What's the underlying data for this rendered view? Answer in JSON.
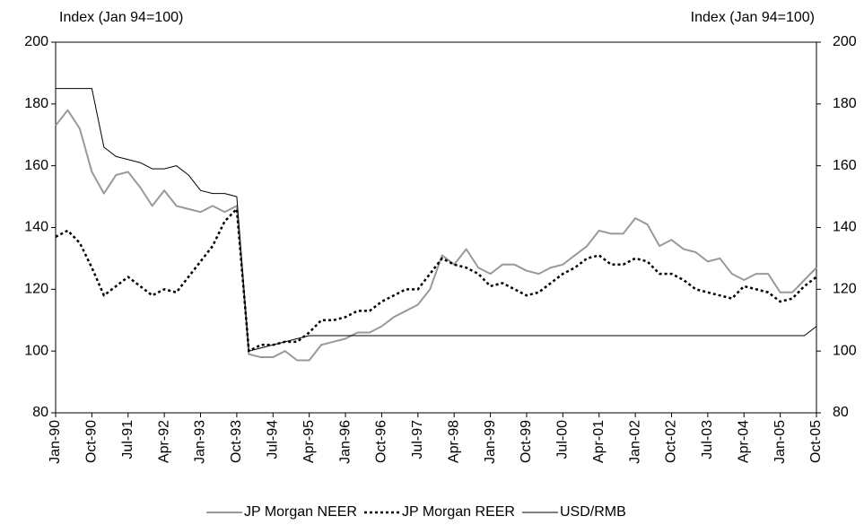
{
  "chart_data": {
    "type": "line",
    "y_label": "Index (Jan 94=100)",
    "y2_label": "Index (Jan 94=100)",
    "categories": [
      "Jan-90",
      null,
      null,
      "Oct-90",
      null,
      null,
      "Jul-91",
      null,
      null,
      "Apr-92",
      null,
      null,
      "Jan-93",
      null,
      null,
      "Oct-93",
      null,
      null,
      "Jul-94",
      null,
      null,
      "Apr-95",
      null,
      null,
      "Jan-96",
      null,
      null,
      "Oct-96",
      null,
      null,
      "Jul-97",
      null,
      null,
      "Apr-98",
      null,
      null,
      "Jan-99",
      null,
      null,
      "Oct-99",
      null,
      null,
      "Jul-00",
      null,
      null,
      "Apr-01",
      null,
      null,
      "Jan-02",
      null,
      null,
      "Oct-02",
      null,
      null,
      "Jul-03",
      null,
      null,
      "Apr-04",
      null,
      null,
      "Jan-05",
      null,
      null,
      "Oct-05"
    ],
    "series": [
      {
        "name": "JP Morgan NEER",
        "color": "#999999",
        "style": "solid",
        "values": [
          173,
          178,
          172,
          158,
          151,
          157,
          158,
          153,
          147,
          152,
          147,
          146,
          145,
          147,
          145,
          147,
          99,
          98,
          98,
          100,
          97,
          97,
          102,
          103,
          104,
          106,
          106,
          108,
          111,
          113,
          115,
          120,
          131,
          128,
          133,
          127,
          125,
          128,
          128,
          126,
          125,
          127,
          128,
          131,
          134,
          139,
          138,
          138,
          143,
          141,
          134,
          136,
          133,
          132,
          129,
          130,
          125,
          123,
          125,
          125,
          119,
          119,
          123,
          127
        ]
      },
      {
        "name": "JP Morgan REER",
        "color": "#000000",
        "style": "dotted",
        "values": [
          137,
          139,
          135,
          127,
          118,
          121,
          124,
          121,
          118,
          120,
          119,
          124,
          129,
          134,
          142,
          146,
          100,
          102,
          102,
          103,
          103,
          106,
          110,
          110,
          111,
          113,
          113,
          116,
          118,
          120,
          120,
          125,
          130,
          128,
          127,
          125,
          121,
          122,
          120,
          118,
          119,
          122,
          125,
          127,
          130,
          131,
          128,
          128,
          130,
          129,
          125,
          125,
          123,
          120,
          119,
          118,
          117,
          121,
          120,
          119,
          116,
          117,
          121,
          124
        ]
      },
      {
        "name": "USD/RMB",
        "color": "#000000",
        "style": "thin",
        "values": [
          185,
          185,
          185,
          185,
          166,
          163,
          162,
          161,
          159,
          159,
          160,
          157,
          152,
          151,
          151,
          150,
          100,
          101,
          102,
          103,
          104,
          105,
          105,
          105,
          105,
          105,
          105,
          105,
          105,
          105,
          105,
          105,
          105,
          105,
          105,
          105,
          105,
          105,
          105,
          105,
          105,
          105,
          105,
          105,
          105,
          105,
          105,
          105,
          105,
          105,
          105,
          105,
          105,
          105,
          105,
          105,
          105,
          105,
          105,
          105,
          105,
          105,
          105,
          108
        ]
      }
    ],
    "ylim": [
      80,
      200
    ],
    "yticks": [
      80,
      100,
      120,
      140,
      160,
      180,
      200
    ],
    "y2lim": [
      80,
      200
    ],
    "y2ticks": [
      80,
      100,
      120,
      140,
      160,
      180,
      200
    ],
    "legend": "bottom"
  }
}
